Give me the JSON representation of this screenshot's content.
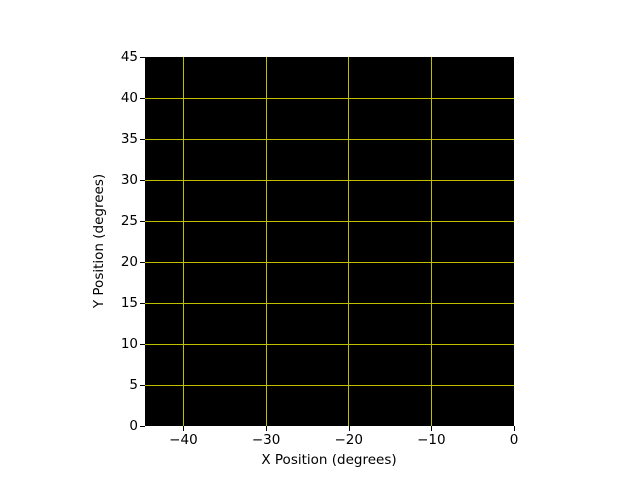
{
  "chart_data": {
    "type": "scatter",
    "title": "",
    "xlabel": "X Position (degrees)",
    "ylabel": "Y Position (degrees)",
    "xlim": [
      -44.65,
      0
    ],
    "ylim": [
      0,
      45
    ],
    "xticks": [
      -40,
      -30,
      -20,
      -10,
      0
    ],
    "xtick_labels": [
      "−40",
      "−30",
      "−20",
      "−10",
      "0"
    ],
    "yticks": [
      0,
      5,
      10,
      15,
      20,
      25,
      30,
      35,
      40,
      45
    ],
    "ytick_labels": [
      "0",
      "5",
      "10",
      "15",
      "20",
      "25",
      "30",
      "35",
      "40",
      "45"
    ],
    "grid": true,
    "legend_position": "none",
    "series": [],
    "colors": {
      "figure_bg": "#ffffff",
      "axes_bg": "#000000",
      "grid": "#bfbf00",
      "text": "#000000",
      "spine": "#000000"
    }
  }
}
